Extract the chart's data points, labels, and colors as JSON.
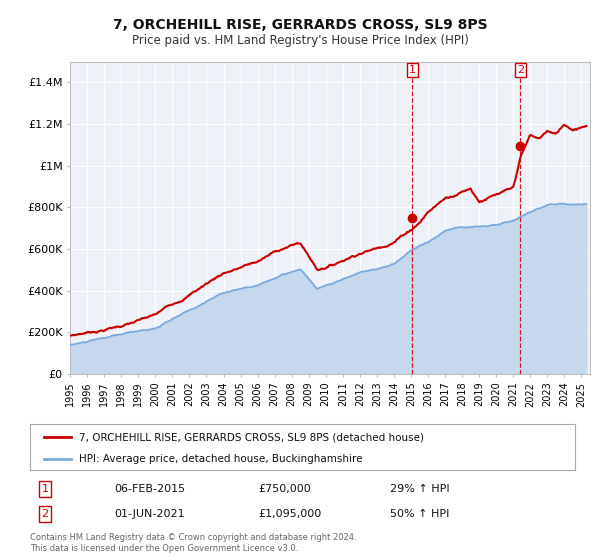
{
  "title": "7, ORCHEHILL RISE, GERRARDS CROSS, SL9 8PS",
  "subtitle": "Price paid vs. HM Land Registry's House Price Index (HPI)",
  "ylim": [
    0,
    1500000
  ],
  "xlim_start": 1995.0,
  "xlim_end": 2025.5,
  "background_color": "#ffffff",
  "plot_bg_color": "#eef2f8",
  "grid_color": "#ffffff",
  "red_line_color": "#cc0000",
  "blue_line_color": "#7aaadd",
  "blue_fill_color": "#c5d8ee",
  "sale1_x": 2015.09,
  "sale1_y": 750000,
  "sale1_label": "1",
  "sale1_date": "06-FEB-2015",
  "sale1_price": "£750,000",
  "sale1_hpi": "29% ↑ HPI",
  "sale2_x": 2021.42,
  "sale2_y": 1095000,
  "sale2_label": "2",
  "sale2_date": "01-JUN-2021",
  "sale2_price": "£1,095,000",
  "sale2_hpi": "50% ↑ HPI",
  "legend_line1": "7, ORCHEHILL RISE, GERRARDS CROSS, SL9 8PS (detached house)",
  "legend_line2": "HPI: Average price, detached house, Buckinghamshire",
  "footer1": "Contains HM Land Registry data © Crown copyright and database right 2024.",
  "footer2": "This data is licensed under the Open Government Licence v3.0.",
  "ytick_labels": [
    "£0",
    "£200K",
    "£400K",
    "£600K",
    "£800K",
    "£1M",
    "£1.2M",
    "£1.4M"
  ],
  "ytick_values": [
    0,
    200000,
    400000,
    600000,
    800000,
    1000000,
    1200000,
    1400000
  ]
}
